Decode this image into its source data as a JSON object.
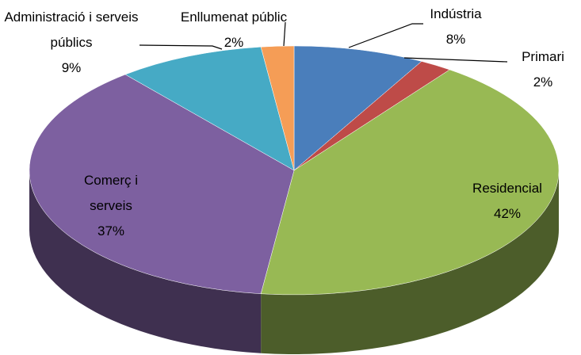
{
  "chart_data": {
    "type": "pie",
    "categories": [
      "Indústria",
      "Primari",
      "Residencial",
      "Comerç i serveis",
      "Administració i serveis públics",
      "Enllumenat públic"
    ],
    "values": [
      8,
      2,
      42,
      37,
      9,
      2
    ],
    "value_labels": [
      "8%",
      "2%",
      "42%",
      "37%",
      "9%",
      "2%"
    ],
    "colors": [
      "#4a7ebb",
      "#be4b48",
      "#98b954",
      "#7d60a0",
      "#46aac5",
      "#f59d56"
    ]
  }
}
